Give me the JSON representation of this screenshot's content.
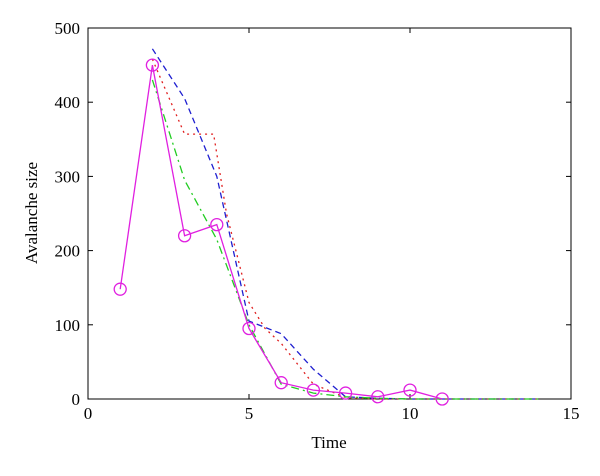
{
  "chart_data": {
    "type": "line",
    "title": "",
    "xlabel": "Time",
    "ylabel": "Avalanche size",
    "xlim": [
      0,
      15
    ],
    "ylim": [
      0,
      500
    ],
    "xticks": [
      0,
      5,
      10,
      15
    ],
    "yticks": [
      0,
      100,
      200,
      300,
      400,
      500
    ],
    "grid": false,
    "series": [
      {
        "style": "dashed",
        "color": "#1f1fd0",
        "x": [
          2,
          3,
          4,
          5,
          6,
          7,
          8,
          9,
          10,
          11,
          12,
          13,
          14
        ],
        "y": [
          472,
          405,
          300,
          105,
          88,
          40,
          3,
          1,
          0,
          0,
          0,
          0,
          0
        ]
      },
      {
        "style": "dotted",
        "color": "#e02020",
        "x": [
          2,
          3,
          3.9,
          4.3,
          5,
          5.5,
          6,
          7,
          8,
          9,
          10,
          11,
          12,
          13,
          14
        ],
        "y": [
          458,
          357,
          357,
          250,
          130,
          95,
          75,
          20,
          2,
          0,
          0,
          0,
          0,
          0,
          0
        ]
      },
      {
        "style": "dashdot",
        "color": "#22cc22",
        "x": [
          2,
          3,
          4,
          5,
          6,
          7,
          8,
          9,
          10,
          11,
          12,
          13,
          14
        ],
        "y": [
          430,
          295,
          215,
          100,
          20,
          8,
          3,
          1,
          0,
          0,
          0,
          0,
          0
        ]
      },
      {
        "style": "solid",
        "marker": "circle",
        "color": "#e020e0",
        "x": [
          1,
          2,
          3,
          4,
          5,
          6,
          7,
          8,
          9,
          10,
          11
        ],
        "y": [
          148,
          450,
          220,
          235,
          95,
          22,
          12,
          8,
          3,
          12,
          0
        ]
      }
    ]
  }
}
